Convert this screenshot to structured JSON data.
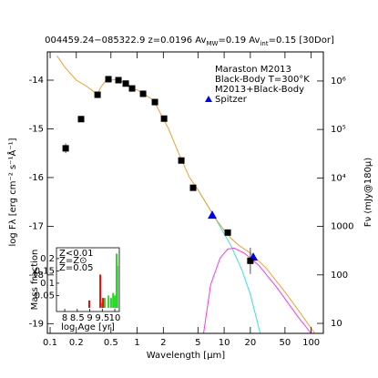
{
  "chart_data": [
    {
      "type": "line",
      "title_parts": [
        "004459.24−085322.9  z=0.0196  Av",
        "MW",
        "=0.19  Av",
        "int",
        "=0.15  [30Dor]"
      ],
      "x_label": "Wavelength [μm]",
      "y_label": "log Fλ [erg cm⁻² s⁻¹Å⁻¹]",
      "y2_label": "Fν (mJy@180μ)",
      "xlog": true,
      "y2log": true,
      "xlim": [
        0.093,
        138
      ],
      "ylim": [
        -19.2,
        -13.42
      ],
      "y2lim": [
        6.22,
        3980000
      ],
      "xticks": [
        0.1,
        0.2,
        0.5,
        1,
        2,
        5,
        10,
        20,
        50,
        100
      ],
      "yticks": [
        -14,
        -15,
        -16,
        -17,
        -18,
        -19
      ],
      "y2ticks": [
        10,
        100,
        1000,
        {
          "value": 10000,
          "label": "10⁴"
        },
        {
          "value": 100000,
          "label": "10⁵"
        },
        {
          "value": 1000000,
          "label": "10⁶"
        }
      ],
      "series": [
        {
          "name": "Maraston M2013",
          "color": "#33e0e8",
          "mark": "line",
          "x": [
            5,
            8,
            12,
            16,
            20,
            26
          ],
          "values": [
            -16.25,
            -16.85,
            -17.4,
            -17.9,
            -18.4,
            -19.2
          ]
        },
        {
          "name": "Black-Body T=300°K",
          "color": "#ff33ff",
          "mark": "line",
          "x": [
            5.8,
            7,
            9,
            11,
            13,
            17,
            25,
            40,
            70,
            100
          ],
          "values": [
            -19.2,
            -18.2,
            -17.65,
            -17.47,
            -17.45,
            -17.55,
            -17.8,
            -18.25,
            -18.85,
            -19.2
          ]
        },
        {
          "name": "M2013+Black-Body",
          "color": "#f0a030",
          "mark": "line",
          "x": [
            0.12,
            0.15,
            0.2,
            0.25,
            0.3,
            0.35,
            0.38,
            0.42,
            0.45,
            0.5,
            0.6,
            0.7,
            0.8,
            0.9,
            1.0,
            1.2,
            1.5,
            1.7,
            2.0,
            2.3,
            3.0,
            4.0,
            5,
            8,
            10,
            12,
            15,
            20,
            30,
            50,
            80,
            110
          ],
          "values": [
            -13.5,
            -13.75,
            -14.0,
            -14.1,
            -14.2,
            -14.3,
            -14.15,
            -14.05,
            -13.95,
            -14.0,
            -13.98,
            -14.05,
            -14.1,
            -14.18,
            -14.2,
            -14.28,
            -14.4,
            -14.55,
            -14.8,
            -15.0,
            -15.5,
            -16.0,
            -16.25,
            -16.85,
            -17.08,
            -17.25,
            -17.4,
            -17.55,
            -17.85,
            -18.35,
            -18.85,
            -19.2
          ]
        },
        {
          "name": "Spitzer",
          "color": "#0000ff",
          "mark": "triangle",
          "x": [
            7.3,
            21.6
          ],
          "values": [
            -16.77,
            -17.63
          ]
        }
      ],
      "photometry": {
        "color": "#000000",
        "x": [
          0.151,
          0.227,
          0.351,
          0.468,
          0.61,
          0.74,
          0.875,
          1.17,
          1.6,
          2.04,
          3.22,
          4.4,
          11.0,
          20
        ],
        "values": [
          -15.4,
          -14.8,
          -14.3,
          -13.98,
          -14.0,
          -14.07,
          -14.17,
          -14.28,
          -14.45,
          -14.79,
          -15.65,
          -16.21,
          -17.13,
          -17.71
        ],
        "errors": [
          0.1,
          null,
          null,
          null,
          null,
          null,
          null,
          null,
          null,
          null,
          null,
          null,
          null,
          0.27
        ]
      }
    },
    {
      "type": "bar",
      "x_label": "log Age [yr]",
      "y_label": "Mass fraction",
      "xlim": [
        7.67,
        10.18
      ],
      "ylim": [
        -0.015,
        0.244
      ],
      "xticks": [
        8,
        8.5,
        9,
        9.5,
        10
      ],
      "yticks": [
        0.05,
        0.1,
        0.15,
        0.2
      ],
      "series": [
        {
          "name": "Z<0.01",
          "color": "#0000ff",
          "x": [],
          "values": []
        },
        {
          "name": "Z=Z⊙",
          "color": "#22dd22",
          "x": [
            9.49,
            9.6,
            9.75,
            9.85,
            9.93,
            10.0,
            10.07,
            10.1
          ],
          "values": [
            0.02,
            0.04,
            0.05,
            0.04,
            0.06,
            0.05,
            0.22,
            0.17
          ]
        },
        {
          "name": "Z=0.05",
          "color": "#ff0000",
          "x": [
            8.98,
            9.42,
            9.53
          ],
          "values": [
            0.03,
            0.135,
            0.04
          ]
        }
      ]
    }
  ]
}
